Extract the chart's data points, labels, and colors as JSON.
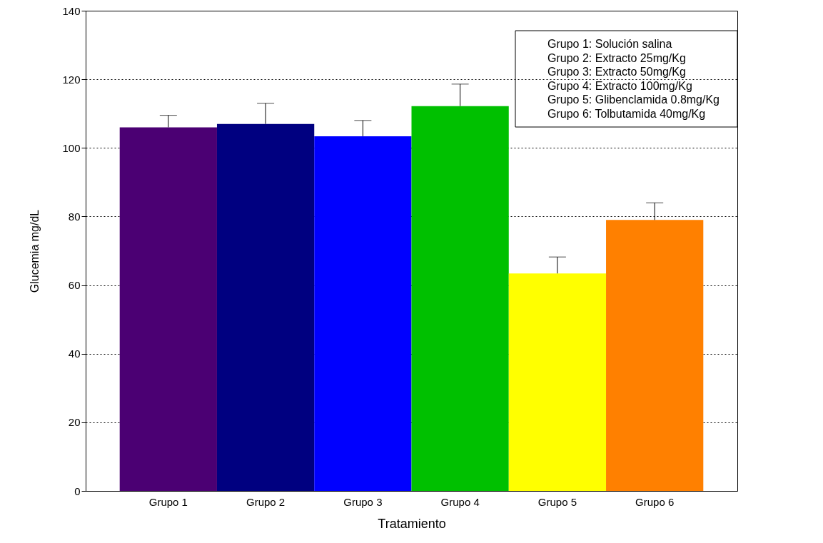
{
  "chart_data": {
    "type": "bar",
    "categories": [
      "Grupo 1",
      "Grupo 2",
      "Grupo 3",
      "Grupo 4",
      "Grupo 5",
      "Grupo 6"
    ],
    "values": [
      106,
      107,
      103.4,
      112.2,
      63.4,
      79
    ],
    "colors": [
      "#4b0073",
      "#000080",
      "#0000ff",
      "#00c000",
      "#ffff00",
      "#ff8000"
    ],
    "errors": [
      [
        106,
        109.5
      ],
      [
        107,
        113
      ],
      [
        103.4,
        108
      ],
      [
        112.2,
        118.6
      ],
      [
        63.4,
        68.2
      ],
      [
        79,
        84
      ]
    ],
    "xlabel": "Tratamiento",
    "ylabel": "Glucemia mg/dL",
    "ylim": [
      0,
      140
    ],
    "yticks": [
      0,
      20,
      40,
      60,
      80,
      100,
      120,
      140
    ],
    "grid": "y",
    "annotations": [
      "Grupo 1: Solución salina",
      "Grupo 2: Extracto 25mg/Kg",
      "Grupo 3: Extracto 50mg/Kg",
      "Grupo 4: Extracto 100mg/Kg",
      "Grupo 5: Glibenclamida 0.8mg/Kg",
      "Grupo 6: Tolbutamida 40mg/Kg"
    ]
  }
}
